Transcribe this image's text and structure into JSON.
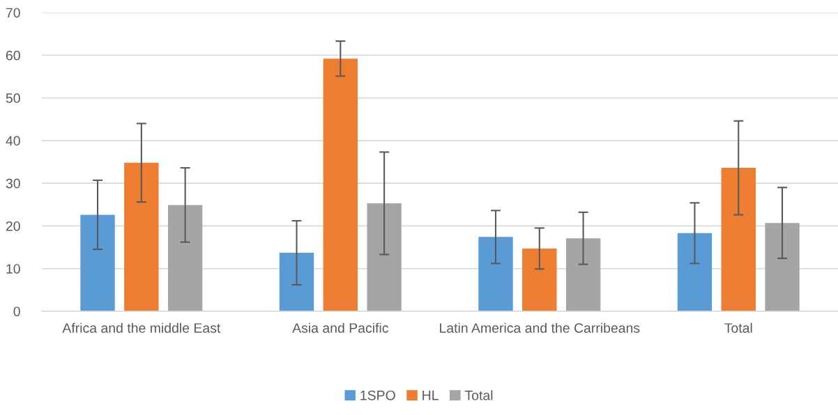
{
  "chart_data": {
    "type": "bar",
    "categories": [
      "Africa and the middle East",
      "Asia and Pacific",
      "Latin America and the Carribeans",
      "Total"
    ],
    "series": [
      {
        "name": "1SPO",
        "color": "#5b9bd5",
        "values": [
          22.6,
          13.7,
          17.4,
          18.3
        ],
        "errors": [
          8.1,
          7.5,
          6.2,
          7.1
        ]
      },
      {
        "name": "HL",
        "color": "#ed7d31",
        "values": [
          34.8,
          59.2,
          14.7,
          33.6
        ],
        "errors": [
          9.2,
          4.1,
          4.8,
          11
        ]
      },
      {
        "name": "Total",
        "color": "#a5a5a5",
        "values": [
          24.9,
          25.3,
          17.1,
          20.7
        ],
        "errors": [
          8.7,
          12,
          6.1,
          8.3
        ]
      }
    ],
    "ylim": [
      0,
      70
    ],
    "yticks": [
      0,
      10,
      20,
      30,
      40,
      50,
      60,
      70
    ],
    "grid": "y",
    "legend": "bottom"
  }
}
